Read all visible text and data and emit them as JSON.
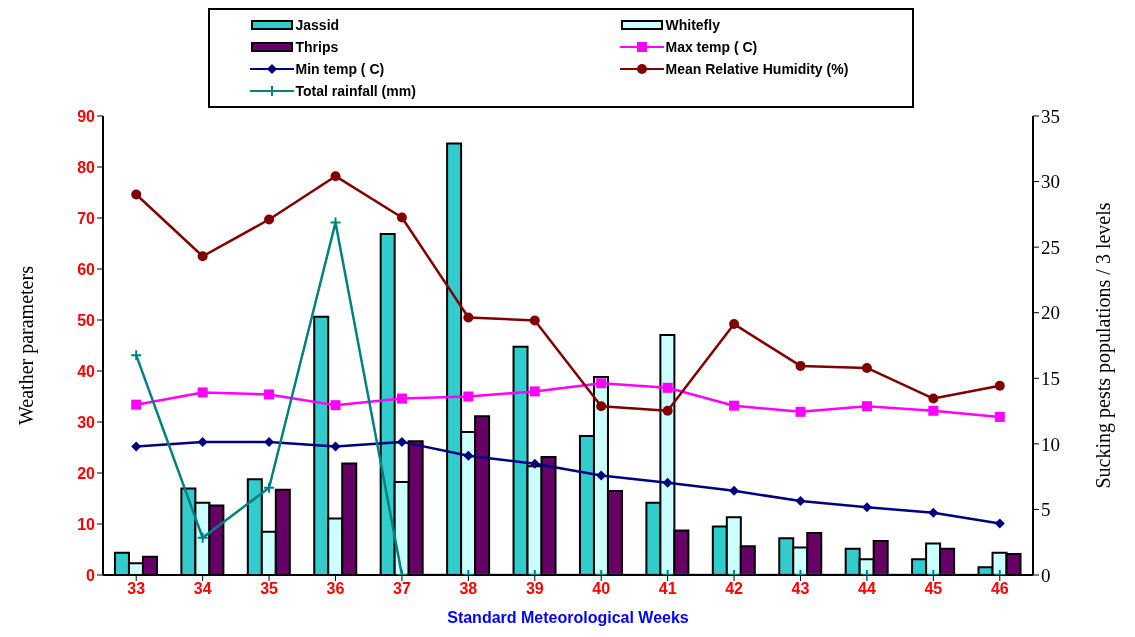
{
  "chart_data": {
    "type": "bar",
    "xlabel": "Standard Meteorological Weeks",
    "ylabel": "Weather parameters",
    "y2label": "Sucking pests populations / 3 levels",
    "categories": [
      "33",
      "34",
      "35",
      "36",
      "37",
      "38",
      "39",
      "40",
      "41",
      "42",
      "43",
      "44",
      "45",
      "46"
    ],
    "series": [
      {
        "name": "Jassid",
        "axis": "y2",
        "color": "#33cccc",
        "values": [
          1.7,
          6.6,
          7.3,
          19.7,
          26.0,
          32.9,
          17.4,
          10.6,
          5.5,
          3.7,
          2.8,
          2.0,
          1.2,
          0.6
        ]
      },
      {
        "name": "Whitefly",
        "axis": "y2",
        "color": "#ccffff",
        "values": [
          0.9,
          5.5,
          3.3,
          4.3,
          7.1,
          10.9,
          8.3,
          15.1,
          18.3,
          4.4,
          2.1,
          1.2,
          2.4,
          1.7
        ]
      },
      {
        "name": "Thrips",
        "axis": "y2",
        "color": "#660066",
        "values": [
          1.4,
          5.3,
          6.5,
          8.5,
          10.2,
          12.1,
          9.0,
          6.4,
          3.4,
          2.2,
          3.2,
          2.6,
          2.0,
          1.6
        ]
      },
      {
        "name": "Max temp ( C)",
        "type": "line",
        "marker": "square",
        "color": "#ff00ff",
        "values": [
          33.4,
          35.8,
          35.4,
          33.3,
          34.6,
          35.0,
          36.0,
          37.6,
          36.7,
          33.2,
          32.0,
          33.1,
          32.2,
          31.0
        ]
      },
      {
        "name": "Min temp ( C)",
        "type": "line",
        "marker": "diamond",
        "color": "#000080",
        "values": [
          25.2,
          26.1,
          26.1,
          25.2,
          26.1,
          23.4,
          21.8,
          19.5,
          18.1,
          16.5,
          14.5,
          13.3,
          12.2,
          10.1
        ]
      },
      {
        "name": "Mean Relative Humidity (%)",
        "type": "line",
        "marker": "circle",
        "color": "#800000",
        "values": [
          74.6,
          62.5,
          69.7,
          78.2,
          70.1,
          50.5,
          49.9,
          33.1,
          32.2,
          49.2,
          41.0,
          40.6,
          34.6,
          37.1
        ]
      },
      {
        "name": "Total rainfall (mm)",
        "type": "line",
        "marker": "cross",
        "color": "#008080",
        "values": [
          43.1,
          7.3,
          17.1,
          69.1,
          0,
          0,
          0,
          0,
          0,
          0,
          0,
          0,
          0,
          0
        ]
      }
    ],
    "ylim": [
      0,
      90
    ],
    "yticks": [
      0,
      10,
      20,
      30,
      40,
      50,
      60,
      70,
      80,
      90
    ],
    "y2lim": [
      0,
      35
    ],
    "y2ticks": [
      0,
      5,
      10,
      15,
      20,
      25,
      30,
      35
    ],
    "grid": false,
    "legend": "top",
    "line_style": "solid"
  }
}
